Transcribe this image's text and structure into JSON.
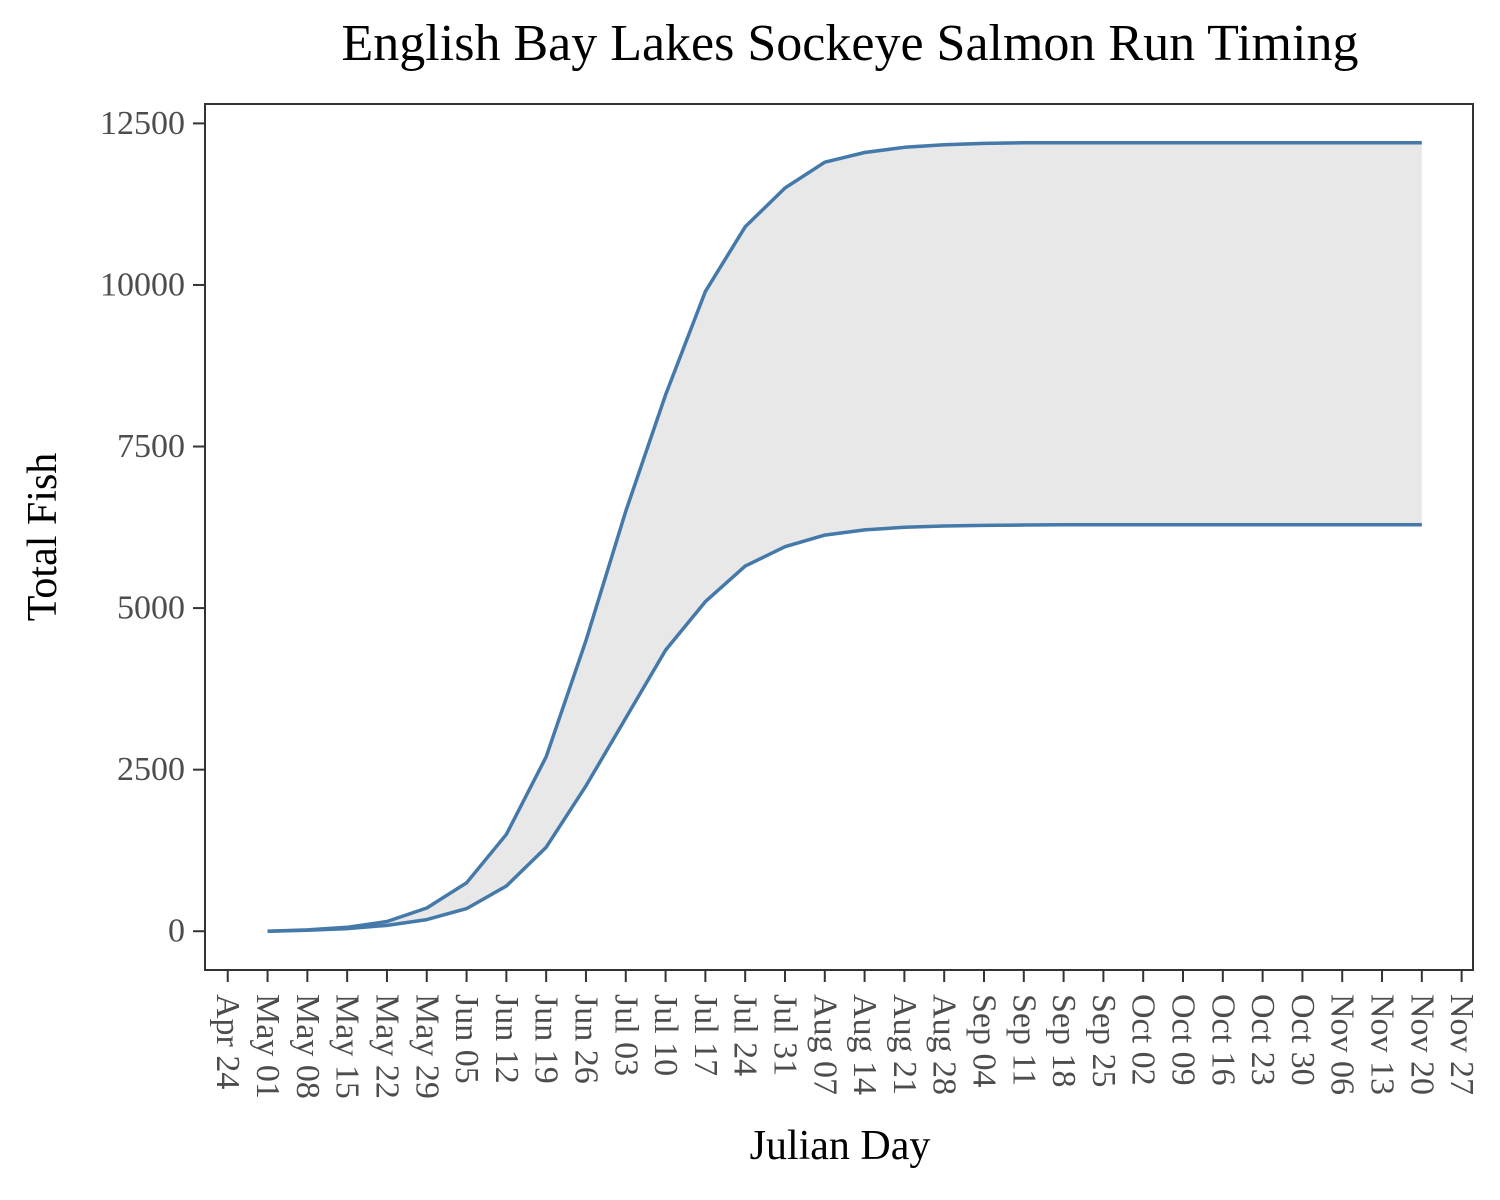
{
  "chart_data": {
    "type": "area",
    "title": "English Bay Lakes Sockeye Salmon Run Timing",
    "xlabel": "Julian Day",
    "ylabel": "Total Fish",
    "ylim": [
      -600,
      12800
    ],
    "xlim": [
      "Apr 20",
      "Nov 29"
    ],
    "y_ticks": [
      "0",
      "2500",
      "5000",
      "7500",
      "10000",
      "12500"
    ],
    "x_ticks": [
      "Apr 24",
      "May 01",
      "May 08",
      "May 15",
      "May 22",
      "May 29",
      "Jun 05",
      "Jun 12",
      "Jun 19",
      "Jun 26",
      "Jul 03",
      "Jul 10",
      "Jul 17",
      "Jul 24",
      "Jul 31",
      "Aug 07",
      "Aug 14",
      "Aug 21",
      "Aug 28",
      "Sep 04",
      "Sep 11",
      "Sep 18",
      "Sep 25",
      "Oct 02",
      "Oct 09",
      "Oct 16",
      "Oct 23",
      "Oct 30",
      "Nov 06",
      "Nov 13",
      "Nov 20",
      "Nov 27"
    ],
    "grid": false,
    "band_color": "#e8e8e8",
    "line_color": "#4479a9",
    "series": [
      {
        "x": [
          "May 01",
          "May 08",
          "May 15",
          "May 22",
          "May 29",
          "Jun 05",
          "Jun 12",
          "Jun 19",
          "Jun 26",
          "Jul 03",
          "Jul 10",
          "Jul 17",
          "Jul 24",
          "Jul 31",
          "Aug 07",
          "Aug 14",
          "Aug 21",
          "Aug 28",
          "Sep 04",
          "Sep 11",
          "Sep 18",
          "Sep 25",
          "Oct 02",
          "Oct 09",
          "Oct 16",
          "Oct 23",
          "Oct 30",
          "Nov 06",
          "Nov 13",
          "Nov 20"
        ],
        "values": [
          0,
          20,
          60,
          150,
          360,
          750,
          1500,
          2700,
          4500,
          6500,
          8300,
          9900,
          10900,
          11500,
          11900,
          12050,
          12130,
          12170,
          12190,
          12200,
          12200,
          12200,
          12200,
          12200,
          12200,
          12200,
          12200,
          12200,
          12200,
          12200
        ]
      },
      {
        "x": [
          "May 01",
          "May 08",
          "May 15",
          "May 22",
          "May 29",
          "Jun 05",
          "Jun 12",
          "Jun 19",
          "Jun 26",
          "Jul 03",
          "Jul 10",
          "Jul 17",
          "Jul 24",
          "Jul 31",
          "Aug 07",
          "Aug 14",
          "Aug 21",
          "Aug 28",
          "Sep 04",
          "Sep 11",
          "Sep 18",
          "Sep 25",
          "Oct 02",
          "Oct 09",
          "Oct 16",
          "Oct 23",
          "Oct 30",
          "Nov 06",
          "Nov 13",
          "Nov 20"
        ],
        "values": [
          0,
          15,
          40,
          90,
          180,
          350,
          700,
          1300,
          2250,
          3300,
          4350,
          5100,
          5650,
          5950,
          6130,
          6210,
          6250,
          6270,
          6280,
          6285,
          6290,
          6290,
          6290,
          6290,
          6290,
          6290,
          6290,
          6290,
          6290,
          6290
        ]
      }
    ]
  }
}
